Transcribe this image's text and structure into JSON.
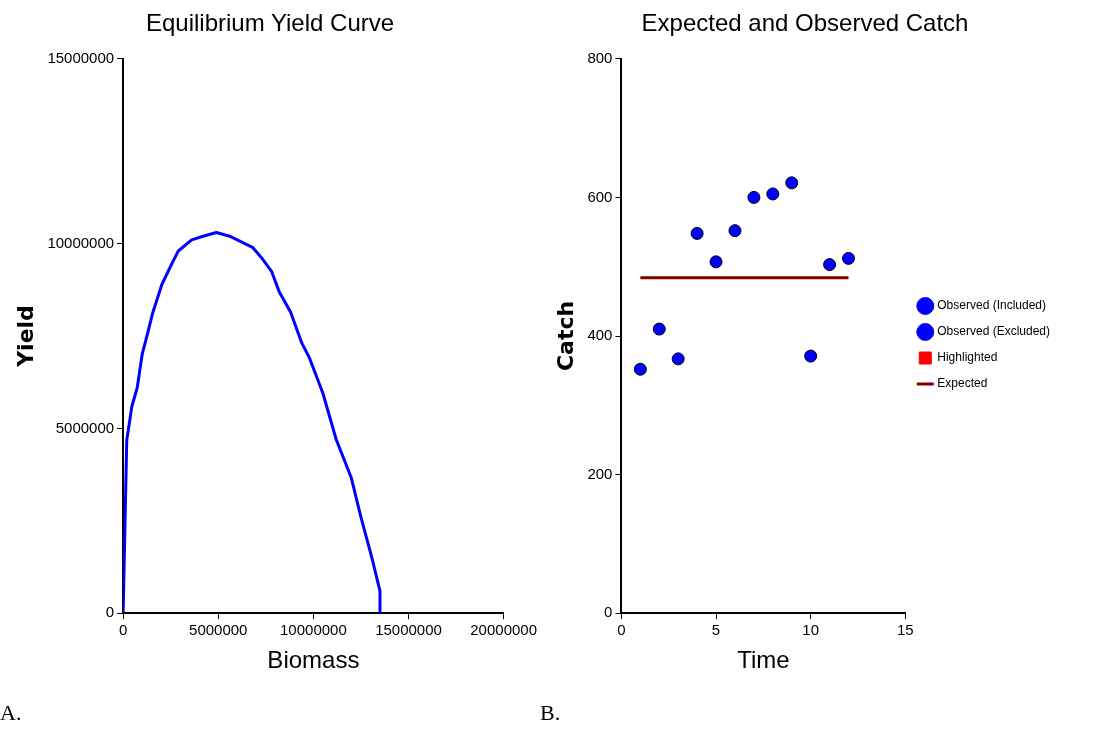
{
  "chart_data": [
    {
      "type": "line",
      "title": "Equilibrium Yield Curve",
      "xlabel": "Biomass",
      "ylabel": "Yield",
      "annotations": [
        "A."
      ],
      "xlim": [
        0,
        20000000
      ],
      "xticks": [
        0,
        5000000,
        10000000,
        15000000,
        20000000
      ],
      "ylim": [
        0,
        15000000
      ],
      "yticks": [
        0,
        5000000,
        10000000,
        15000000
      ],
      "grid": false,
      "legend": false,
      "marker": "none",
      "x": [
        0,
        190000,
        460000,
        740000,
        1000000,
        1300000,
        1540000,
        2040000,
        2600000,
        2900000,
        3600000,
        4200000,
        4900000,
        5600000,
        6800000,
        7300000,
        7800000,
        8200000,
        8800000,
        9400000,
        9800000,
        10500000,
        11200000,
        12000000,
        12500000,
        13100000,
        13500000,
        13500000
      ],
      "series": [
        {
          "color": "#0000ff",
          "values": [
            0,
            4680000,
            5600000,
            6100000,
            7000000,
            7600000,
            8100000,
            8900000,
            9500000,
            9800000,
            10100000,
            10200000,
            10300000,
            10200000,
            9900000,
            9600000,
            9250000,
            8700000,
            8150000,
            7300000,
            6900000,
            5950000,
            4700000,
            3650000,
            2600000,
            1450000,
            600000,
            0
          ]
        }
      ]
    },
    {
      "type": "scatter",
      "title": "Expected and Observed Catch",
      "xlabel": "Time",
      "ylabel": "Catch",
      "annotations": [
        "B."
      ],
      "xlim": [
        0,
        15
      ],
      "xticks": [
        0,
        5,
        10,
        15
      ],
      "ylim": [
        0,
        800
      ],
      "yticks": [
        0,
        200,
        400,
        600,
        800
      ],
      "grid": false,
      "legend": "right",
      "marker": "circle",
      "x": [
        1,
        2,
        3,
        4,
        5,
        6,
        7,
        8,
        9,
        10,
        11,
        12
      ],
      "series": [
        {
          "name": "Observed (Included)",
          "color": "#0000ff",
          "values": [
            352,
            410,
            367,
            548,
            507,
            552,
            600,
            605,
            621,
            371,
            503,
            512
          ]
        },
        {
          "name": "Observed (Excluded)",
          "color": "#0000ff",
          "values": [
            null,
            null,
            null,
            null,
            null,
            null,
            null,
            null,
            null,
            null,
            null,
            null
          ]
        },
        {
          "name": "Highlighted",
          "type": "scatter",
          "marker": "square",
          "color": "#ff0000",
          "values": [
            null,
            null,
            null,
            null,
            null,
            null,
            null,
            null,
            null,
            null,
            null,
            null
          ]
        },
        {
          "name": "Expected",
          "type": "line",
          "marker": "none",
          "color": "#800000",
          "x": [
            1,
            12
          ],
          "values": [
            484,
            484
          ]
        }
      ]
    }
  ]
}
